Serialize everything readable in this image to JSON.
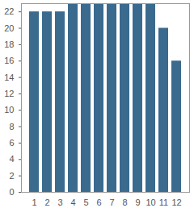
{
  "chart_data": {
    "type": "bar",
    "categories": [
      "1",
      "2",
      "3",
      "4",
      "5",
      "6",
      "7",
      "8",
      "9",
      "10",
      "11",
      "12"
    ],
    "values": [
      22,
      22,
      22,
      23,
      23,
      23,
      23,
      23,
      23,
      23,
      20,
      16
    ],
    "color": "#3a6a8e",
    "ylim": [
      0,
      23
    ],
    "yticks": [
      0,
      2,
      4,
      6,
      8,
      10,
      12,
      14,
      16,
      18,
      20,
      22
    ],
    "grid": false
  }
}
